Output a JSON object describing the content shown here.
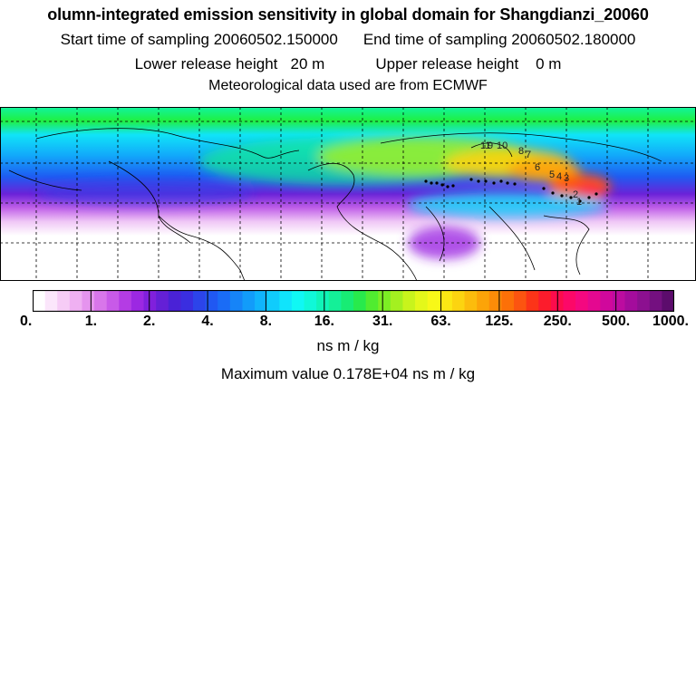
{
  "header": {
    "title": "olumn-integrated emission sensitivity in global domain for Shangdianzi_20060",
    "start_time": "Start time of sampling 20060502.150000",
    "end_time": "End time of sampling 20060502.180000",
    "lower_height": "Lower release height   20 m",
    "upper_height": "Upper release height    0 m",
    "met_data": "Meteorological data used are from ECMWF"
  },
  "map": {
    "trajectory_labels": [
      "9",
      "10",
      "11",
      "8",
      "7",
      "6",
      "5",
      "4",
      "3",
      "2",
      "1"
    ]
  },
  "colorbar": {
    "tick_labels": [
      "0.",
      "1.",
      "2.",
      "4.",
      "8.",
      "16.",
      "31.",
      "63.",
      "125.",
      "250.",
      "500.",
      "1000."
    ],
    "colors": [
      "#ffffff",
      "#fbe6fb",
      "#f6ccf6",
      "#efb0f2",
      "#e594ee",
      "#d876ea",
      "#c85ae8",
      "#b43ce4",
      "#9c28e2",
      "#8020dc",
      "#6420d6",
      "#4a22d6",
      "#3a2ee0",
      "#2c44ea",
      "#2058f2",
      "#1a6cf6",
      "#1684f8",
      "#129cfa",
      "#10b4fc",
      "#10ccfc",
      "#10e4fc",
      "#10f8f4",
      "#10f8d8",
      "#10f4b8",
      "#14f098",
      "#18ec74",
      "#28ea4c",
      "#50ec30",
      "#7cee24",
      "#a4f020",
      "#c8f41c",
      "#e4f81a",
      "#f8f818",
      "#fbe814",
      "#fcd410",
      "#fcbc0c",
      "#fca408",
      "#fc8c08",
      "#fc7008",
      "#fc5410",
      "#fc3418",
      "#fc1c2c",
      "#fc0c4c",
      "#fc0868",
      "#f40880",
      "#e40890",
      "#d0089c",
      "#bc0ca0",
      "#a40c9c",
      "#8c1090",
      "#741080",
      "#5c0c6c"
    ],
    "units": "ns m / kg",
    "maximum": "Maximum value  0.178E+04 ns m / kg"
  }
}
